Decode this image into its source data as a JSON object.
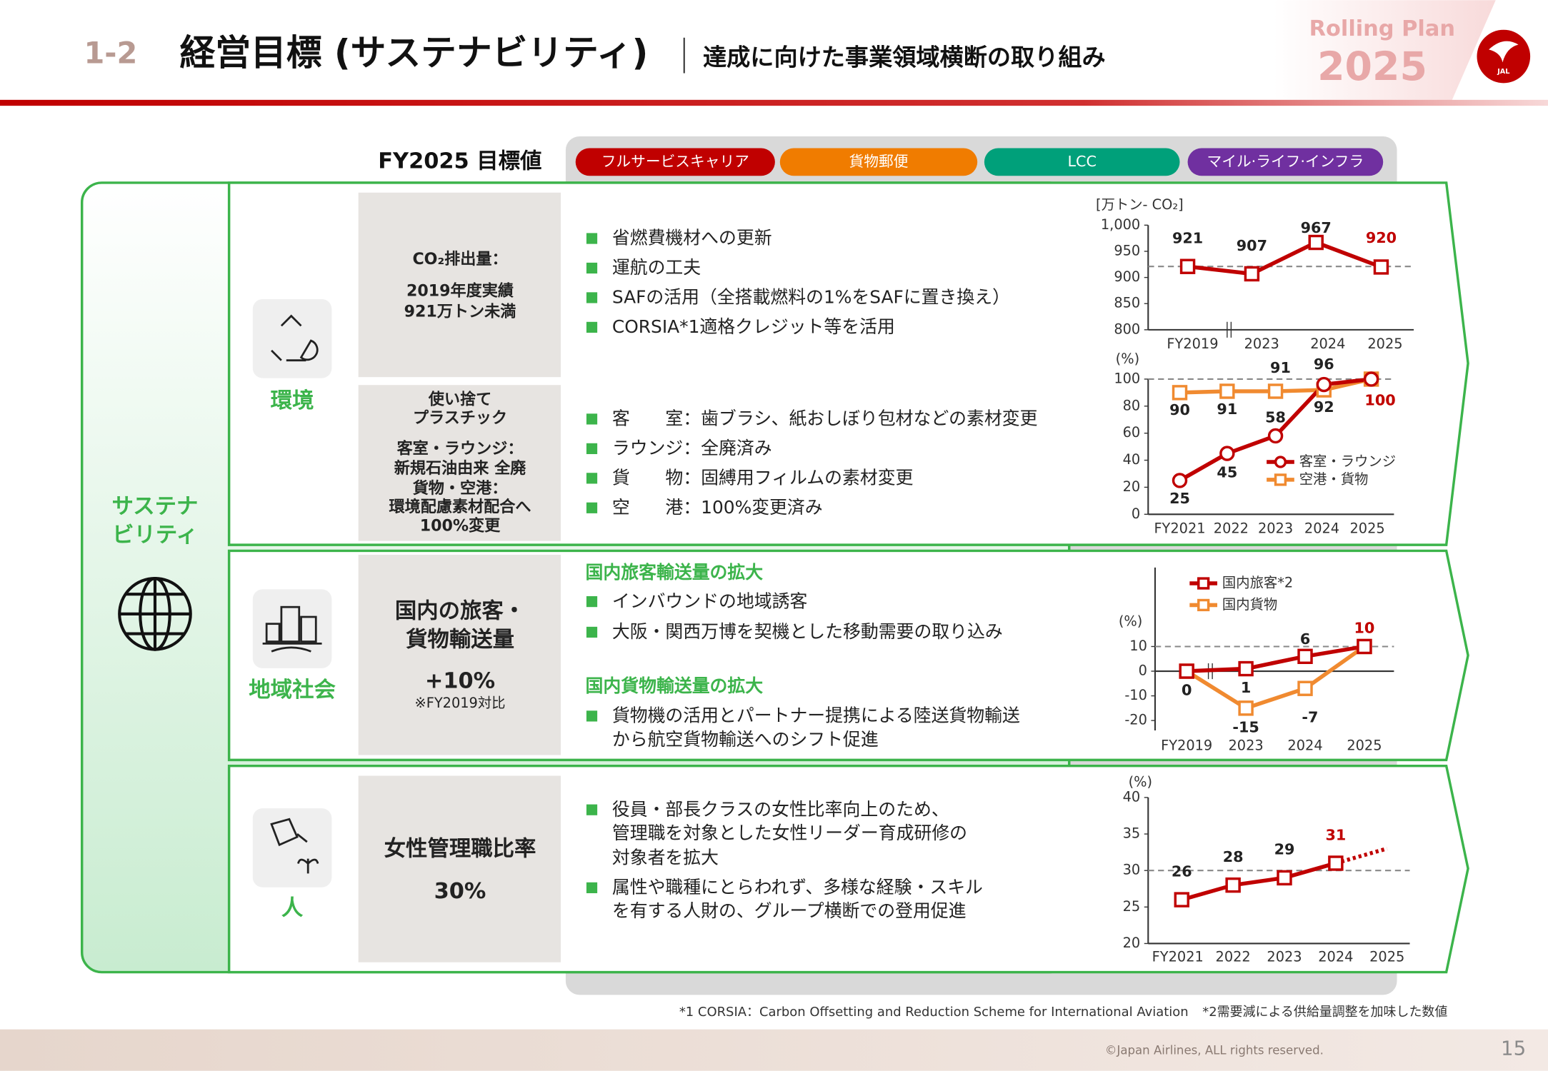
{
  "header": {
    "section": "1-2",
    "title": "経営目標 (サステナビリティ)",
    "subtitle": "達成に向けた事業領域横断の取り組み",
    "badge_line1": "Rolling Plan",
    "badge_year": "2025",
    "logo": "JAL"
  },
  "target_heading": "FY2025 目標値",
  "domains": [
    "フルサービスキャリア",
    "貨物郵便",
    "LCC",
    "マイル·ライフ·インフラ"
  ],
  "theme": [
    "サステナ",
    "ビリティ"
  ],
  "environment": {
    "label": "環境",
    "co2_goal": [
      "CO₂排出量：",
      "2019年度実績",
      "921万トン未満"
    ],
    "co2_bullets": [
      "省燃費機材への更新",
      "運航の工夫",
      "SAFの活用（全搭載燃料の1%をSAFに置き換え）",
      "CORSIA*1適格クレジット等を活用"
    ],
    "plastic_goal": [
      "使い捨て",
      "プラスチック",
      "客室・ラウンジ：",
      "新規石油由来 全廃",
      "貨物・空港：",
      "環境配慮素材配合へ",
      "100%変更"
    ],
    "plastic_bullets": [
      "客　　室：歯ブラシ、紙おしぼり包材などの素材変更",
      "ラウンジ：全廃済み",
      "貨　　物：固縛用フィルムの素材変更",
      "空　　港：100%変更済み"
    ]
  },
  "community": {
    "label": "地域社会",
    "goal": [
      "国内の旅客・",
      "貨物輸送量"
    ],
    "goal_value": "+10%",
    "goal_note": "※FY2019対比",
    "groups": [
      {
        "heading": "国内旅客輸送量の拡大",
        "bullets": [
          [
            "インバウンドの地域誘客"
          ],
          [
            "大阪・関西万博を契機とした移動需要の取り込み"
          ]
        ]
      },
      {
        "heading": "国内貨物輸送量の拡大",
        "bullets": [
          [
            "貨物機の活用とパートナー提携による陸送貨物輸送",
            "から航空貨物輸送へのシフト促進"
          ]
        ]
      }
    ]
  },
  "people": {
    "label": "人",
    "goal": "女性管理職比率",
    "goal_value": "30%",
    "bullets": [
      [
        "役員・部長クラスの女性比率向上のため、",
        "管理職を対象とした女性リーダー育成研修の",
        "対象者を拡大"
      ],
      [
        "属性や職種にとらわれず、多様な経験・スキル",
        "を有する人財の、グループ横断での登用促進"
      ]
    ]
  },
  "footer": {
    "notes": [
      "*1 CORSIA：Carbon Offsetting and Reduction Scheme for International Aviation",
      "*2需要減による供給量調整を加味した数値"
    ],
    "copyright": "©Japan Airlines, ALL rights reserved.",
    "page": 15
  },
  "chart_data": [
    {
      "type": "line",
      "y_label": "[万トン- CO₂]",
      "categories": [
        "FY2019",
        "2023",
        "2024",
        "2025"
      ],
      "series": [
        {
          "name": null,
          "color": "#c00000",
          "marker": "square",
          "values": [
            921,
            907,
            967,
            920
          ]
        }
      ],
      "ylim": [
        800,
        1000
      ],
      "yticks": [
        800,
        850,
        900,
        950,
        {
          "value": 1000,
          "label": "1,000"
        }
      ],
      "reference_line": 921
    },
    {
      "type": "line",
      "y_label": "(%)",
      "categories": [
        "FY2021",
        "2022",
        "2023",
        "2024",
        "2025"
      ],
      "series": [
        {
          "name": "客室・ラウンジ",
          "color": "#c00000",
          "marker": "circle",
          "values": [
            25,
            45,
            58,
            96,
            100
          ]
        },
        {
          "name": "空港・貨物",
          "color": "#f08a30",
          "marker": "square",
          "values": [
            90,
            91,
            91,
            92,
            100
          ]
        }
      ],
      "ylim": [
        0,
        100
      ],
      "yticks": [
        0,
        20,
        40,
        60,
        80,
        100
      ],
      "reference_line": 100,
      "legend": "inside"
    },
    {
      "type": "line",
      "y_label": "(%)",
      "categories": [
        "FY2019",
        "2023",
        "2024",
        "2025"
      ],
      "series": [
        {
          "name": "国内旅客*2",
          "color": "#c00000",
          "marker": "square",
          "values": [
            0,
            1,
            6,
            10
          ]
        },
        {
          "name": "国内貨物",
          "color": "#f08a30",
          "marker": "square",
          "values": [
            0,
            -15,
            -7,
            10
          ]
        }
      ],
      "ylim": [
        -20,
        10
      ],
      "yticks": [
        -20,
        -10,
        0,
        10
      ],
      "reference_line": 10,
      "legend": "inside"
    },
    {
      "type": "line",
      "y_label": "(%)",
      "categories": [
        "FY2021",
        "2022",
        "2023",
        "2024",
        "2025"
      ],
      "series": [
        {
          "name": null,
          "color": "#c00000",
          "marker": "square",
          "values": [
            26,
            28,
            29,
            31,
            null
          ]
        }
      ],
      "projection": {
        "color": "#c00000",
        "style": "dotted",
        "values": [
          null,
          null,
          null,
          31,
          33
        ]
      },
      "ylim": [
        20,
        40
      ],
      "yticks": [
        20,
        25,
        30,
        35,
        40
      ],
      "reference_line": 30
    }
  ]
}
